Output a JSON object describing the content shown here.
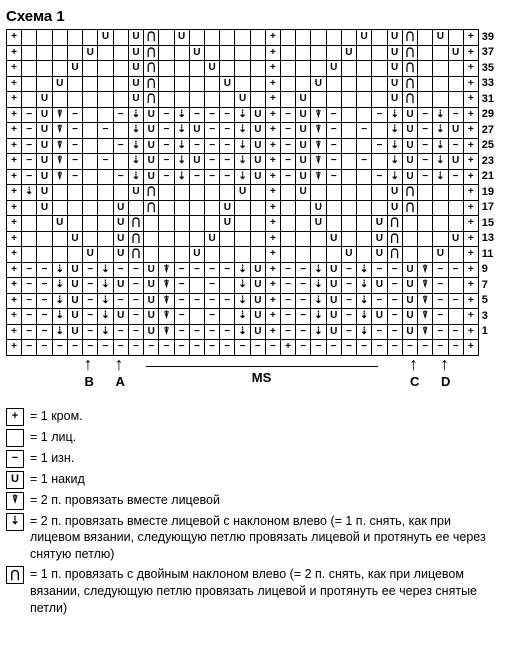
{
  "title": "Схема 1",
  "symbols": {
    "+": "+",
    "-": "−",
    "U": "U",
    "V": "⇣",
    "Y": "⍒",
    "A": "⋂",
    " ": ""
  },
  "colors": {
    "grid": "#000000",
    "bg": "#ffffff",
    "text": "#000000"
  },
  "rowNumbers": [
    39,
    37,
    35,
    33,
    31,
    29,
    27,
    25,
    23,
    21,
    19,
    17,
    15,
    13,
    11,
    9,
    7,
    5,
    3,
    1,
    null
  ],
  "grid": [
    "+     U UA U     +     U UA U     ",
    "+    U  UA  U    +    U  UA  U    ",
    "+   U   UA   U   +   U   UA   U   ",
    "+  U    UA    U  +  U    UA    U  ",
    "+ U     UA     U + U     UA     U ",
    "+-UY-  -VU-V---VU+-UY-  -VU-V---VU",
    "+-UY- - VU-VU--VU+-UY- - VU-VU--VU",
    "+-UY-  -VU-V---VU+-UY-  -VU-V---VU",
    "+-UY- - VU-VU--VU+-UY- - VU-VU--VU",
    "+-UY-  -VU-V---VU+-UY-  -VU-V---VU",
    "+VU     UA     U + U     UA     UY",
    "+ U    U A    U  +  U    UA    U Y",
    "+  U   UA     U  +  U   UA    U  Y",
    "+   U  UA    U   +   U  UA   U   Y",
    "+    U UA   U    +    U UA  U    Y",
    "+--VU-V--UY----VU+--VU-V--UY----VU",
    "+--VU-VU-UY- - VU+--VU-VU-UY- - VU",
    "+--VU-V--UY----VU+--VU-V--UY----VU",
    "+--VU-VU-UY- - VU+--VU-VU-UY- - VU",
    "+--VU-V--UY----VU+--VU-V--UY----VU",
    "+-----------------+---------------"
  ],
  "rightCol": "+",
  "markers": {
    "ms_label": "MS",
    "B": {
      "col": 5,
      "label": "B"
    },
    "A": {
      "col": 7,
      "label": "A"
    },
    "C": {
      "col": 26,
      "label": "C"
    },
    "D": {
      "col": 28,
      "label": "D"
    },
    "ms_from": 9,
    "ms_to": 24
  },
  "legend": [
    {
      "s": "+",
      "t": "= 1 кром."
    },
    {
      "s": " ",
      "t": "= 1 лиц."
    },
    {
      "s": "−",
      "t": "= 1 изн."
    },
    {
      "s": "U",
      "t": "= 1 накид"
    },
    {
      "s": "⍒",
      "t": "= 2 п. провязать вместе лицевой"
    },
    {
      "s": "⇣",
      "t": "= 2 п. провязать вместе лицевой с наклоном влево (= 1 п. снять, как при лицевом вязании, следующую петлю провязать лицевой и протянуть ее через снятую петлю)"
    },
    {
      "s": "⋂",
      "t": "= 1 п. провязать с двойным наклоном влево (= 2 п. снять, как при лицевом вязании, следующую петлю провязать лицевой и протянуть ее через снятые петли)"
    }
  ]
}
